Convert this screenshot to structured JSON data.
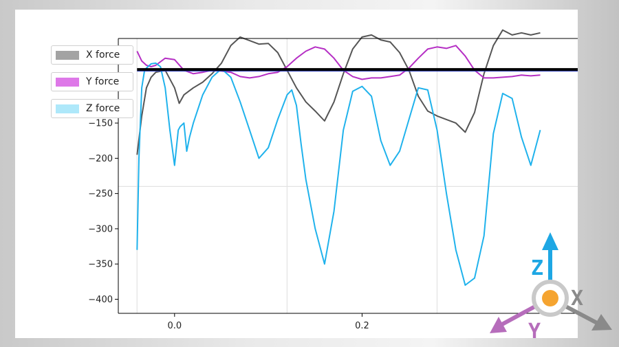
{
  "chart_data": {
    "type": "line",
    "xlim": [
      -0.06,
      0.43
    ],
    "ylim": [
      -420,
      -30
    ],
    "x_ticks": [
      0.0,
      0.2
    ],
    "x_tick_labels": [
      "0.0",
      "0.2"
    ],
    "y_ticks": [
      -100,
      -150,
      -200,
      -250,
      -300,
      -350,
      -400
    ],
    "y_tick_labels": [
      "−100",
      "−150",
      "−200",
      "−250",
      "−300",
      "−350",
      "−400"
    ],
    "grid": true,
    "legend_position": "upper-left",
    "baseline": {
      "y": -74,
      "color": "#000000"
    },
    "series": [
      {
        "name": "X force",
        "color": "#555555",
        "legend_color": "#a3a3a3",
        "x": [
          -0.04,
          -0.035,
          -0.03,
          -0.025,
          -0.02,
          -0.01,
          0.0,
          0.005,
          0.01,
          0.015,
          0.02,
          0.03,
          0.04,
          0.05,
          0.06,
          0.07,
          0.08,
          0.09,
          0.1,
          0.11,
          0.12,
          0.13,
          0.14,
          0.15,
          0.16,
          0.17,
          0.18,
          0.19,
          0.2,
          0.21,
          0.22,
          0.23,
          0.24,
          0.25,
          0.26,
          0.27,
          0.28,
          0.29,
          0.3,
          0.31,
          0.32,
          0.33,
          0.34,
          0.35,
          0.36,
          0.37,
          0.38,
          0.39
        ],
        "y": [
          -195,
          -140,
          -100,
          -85,
          -78,
          -75,
          -100,
          -122,
          -110,
          -105,
          -100,
          -92,
          -80,
          -65,
          -40,
          -28,
          -33,
          -38,
          -37,
          -50,
          -75,
          -100,
          -120,
          -133,
          -147,
          -120,
          -80,
          -45,
          -28,
          -25,
          -32,
          -35,
          -50,
          -75,
          -112,
          -133,
          -140,
          -145,
          -150,
          -163,
          -135,
          -80,
          -40,
          -18,
          -25,
          -22,
          -25,
          -22
        ]
      },
      {
        "name": "Y force",
        "color": "#b52ec4",
        "legend_color": "#de78e8",
        "x": [
          -0.04,
          -0.035,
          -0.03,
          -0.025,
          -0.02,
          -0.01,
          0.0,
          0.01,
          0.02,
          0.03,
          0.04,
          0.05,
          0.06,
          0.07,
          0.08,
          0.09,
          0.1,
          0.11,
          0.12,
          0.13,
          0.14,
          0.15,
          0.16,
          0.17,
          0.18,
          0.19,
          0.2,
          0.21,
          0.22,
          0.23,
          0.24,
          0.25,
          0.26,
          0.27,
          0.28,
          0.29,
          0.3,
          0.31,
          0.32,
          0.33,
          0.34,
          0.35,
          0.36,
          0.37,
          0.38,
          0.39
        ],
        "y": [
          -48,
          -62,
          -68,
          -70,
          -68,
          -58,
          -60,
          -75,
          -80,
          -78,
          -75,
          -76,
          -78,
          -84,
          -86,
          -84,
          -80,
          -78,
          -70,
          -58,
          -48,
          -42,
          -45,
          -58,
          -75,
          -84,
          -88,
          -86,
          -86,
          -84,
          -82,
          -72,
          -58,
          -45,
          -42,
          -44,
          -40,
          -55,
          -75,
          -86,
          -86,
          -85,
          -84,
          -82,
          -83,
          -82
        ]
      },
      {
        "name": "Z force",
        "color": "#1fb2ec",
        "legend_color": "#aee8fa",
        "x": [
          -0.04,
          -0.038,
          -0.035,
          -0.032,
          -0.03,
          -0.025,
          -0.02,
          -0.015,
          -0.01,
          -0.005,
          0.0,
          0.004,
          0.006,
          0.01,
          0.013,
          0.016,
          0.02,
          0.025,
          0.03,
          0.04,
          0.05,
          0.06,
          0.07,
          0.08,
          0.09,
          0.1,
          0.11,
          0.12,
          0.125,
          0.13,
          0.135,
          0.14,
          0.15,
          0.16,
          0.17,
          0.18,
          0.19,
          0.2,
          0.21,
          0.22,
          0.23,
          0.24,
          0.25,
          0.26,
          0.27,
          0.28,
          0.29,
          0.3,
          0.31,
          0.32,
          0.33,
          0.34,
          0.35,
          0.36,
          0.37,
          0.38,
          0.39
        ],
        "y": [
          -330,
          -200,
          -100,
          -75,
          -72,
          -66,
          -65,
          -70,
          -100,
          -160,
          -210,
          -160,
          -155,
          -150,
          -190,
          -170,
          -150,
          -130,
          -110,
          -85,
          -73,
          -85,
          -120,
          -160,
          -200,
          -185,
          -145,
          -110,
          -103,
          -125,
          -180,
          -230,
          -300,
          -350,
          -275,
          -160,
          -105,
          -98,
          -112,
          -175,
          -210,
          -190,
          -145,
          -100,
          -103,
          -160,
          -250,
          -330,
          -380,
          -370,
          -310,
          -165,
          -108,
          -115,
          -170,
          -210,
          -160
        ]
      }
    ]
  },
  "axes_indicator": {
    "z_label": "Z",
    "x_label": "X",
    "y_label": "Y",
    "z_color": "#1ea7e4",
    "x_color": "#8a8a8a",
    "y_color": "#b66dbb",
    "center_color": "#f5a430"
  }
}
